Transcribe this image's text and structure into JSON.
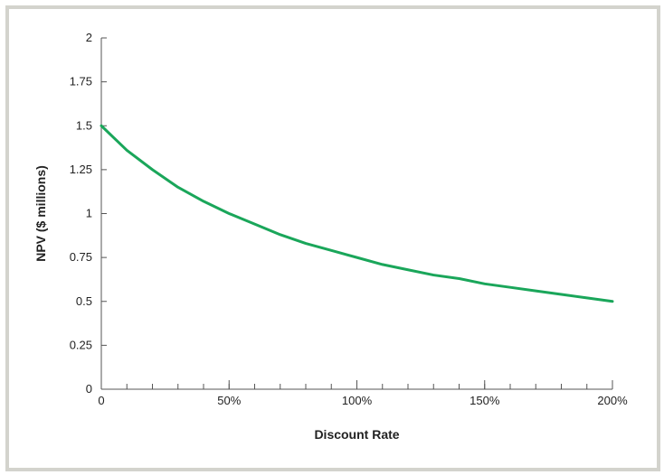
{
  "chart_data": {
    "type": "line",
    "title": "",
    "xlabel": "Discount Rate",
    "ylabel": "NPV ($ millions)",
    "xlim": [
      0,
      200
    ],
    "ylim": [
      0,
      2
    ],
    "x_ticks": [
      0,
      50,
      100,
      150,
      200
    ],
    "x_tick_labels": [
      "0",
      "50%",
      "100%",
      "150%",
      "200%"
    ],
    "x_minor_tick_step": 10,
    "y_ticks": [
      0,
      0.25,
      0.5,
      0.75,
      1,
      1.25,
      1.5,
      1.75,
      2
    ],
    "y_tick_labels": [
      "0",
      "0.25",
      "0.5",
      "0.75",
      "1",
      "1.25",
      "1.5",
      "1.75",
      "2"
    ],
    "grid": false,
    "series": [
      {
        "color": "#1aa65a",
        "x": [
          0,
          10,
          20,
          30,
          40,
          50,
          60,
          70,
          80,
          90,
          100,
          110,
          120,
          130,
          140,
          150,
          160,
          170,
          180,
          190,
          200
        ],
        "y": [
          1.5,
          1.36,
          1.25,
          1.15,
          1.07,
          1.0,
          0.94,
          0.88,
          0.83,
          0.79,
          0.75,
          0.71,
          0.68,
          0.65,
          0.63,
          0.6,
          0.58,
          0.56,
          0.54,
          0.52,
          0.5
        ]
      }
    ]
  },
  "colors": {
    "frame": "#d3d3cd",
    "axis": "#555555",
    "curve": "#1aa65a"
  }
}
